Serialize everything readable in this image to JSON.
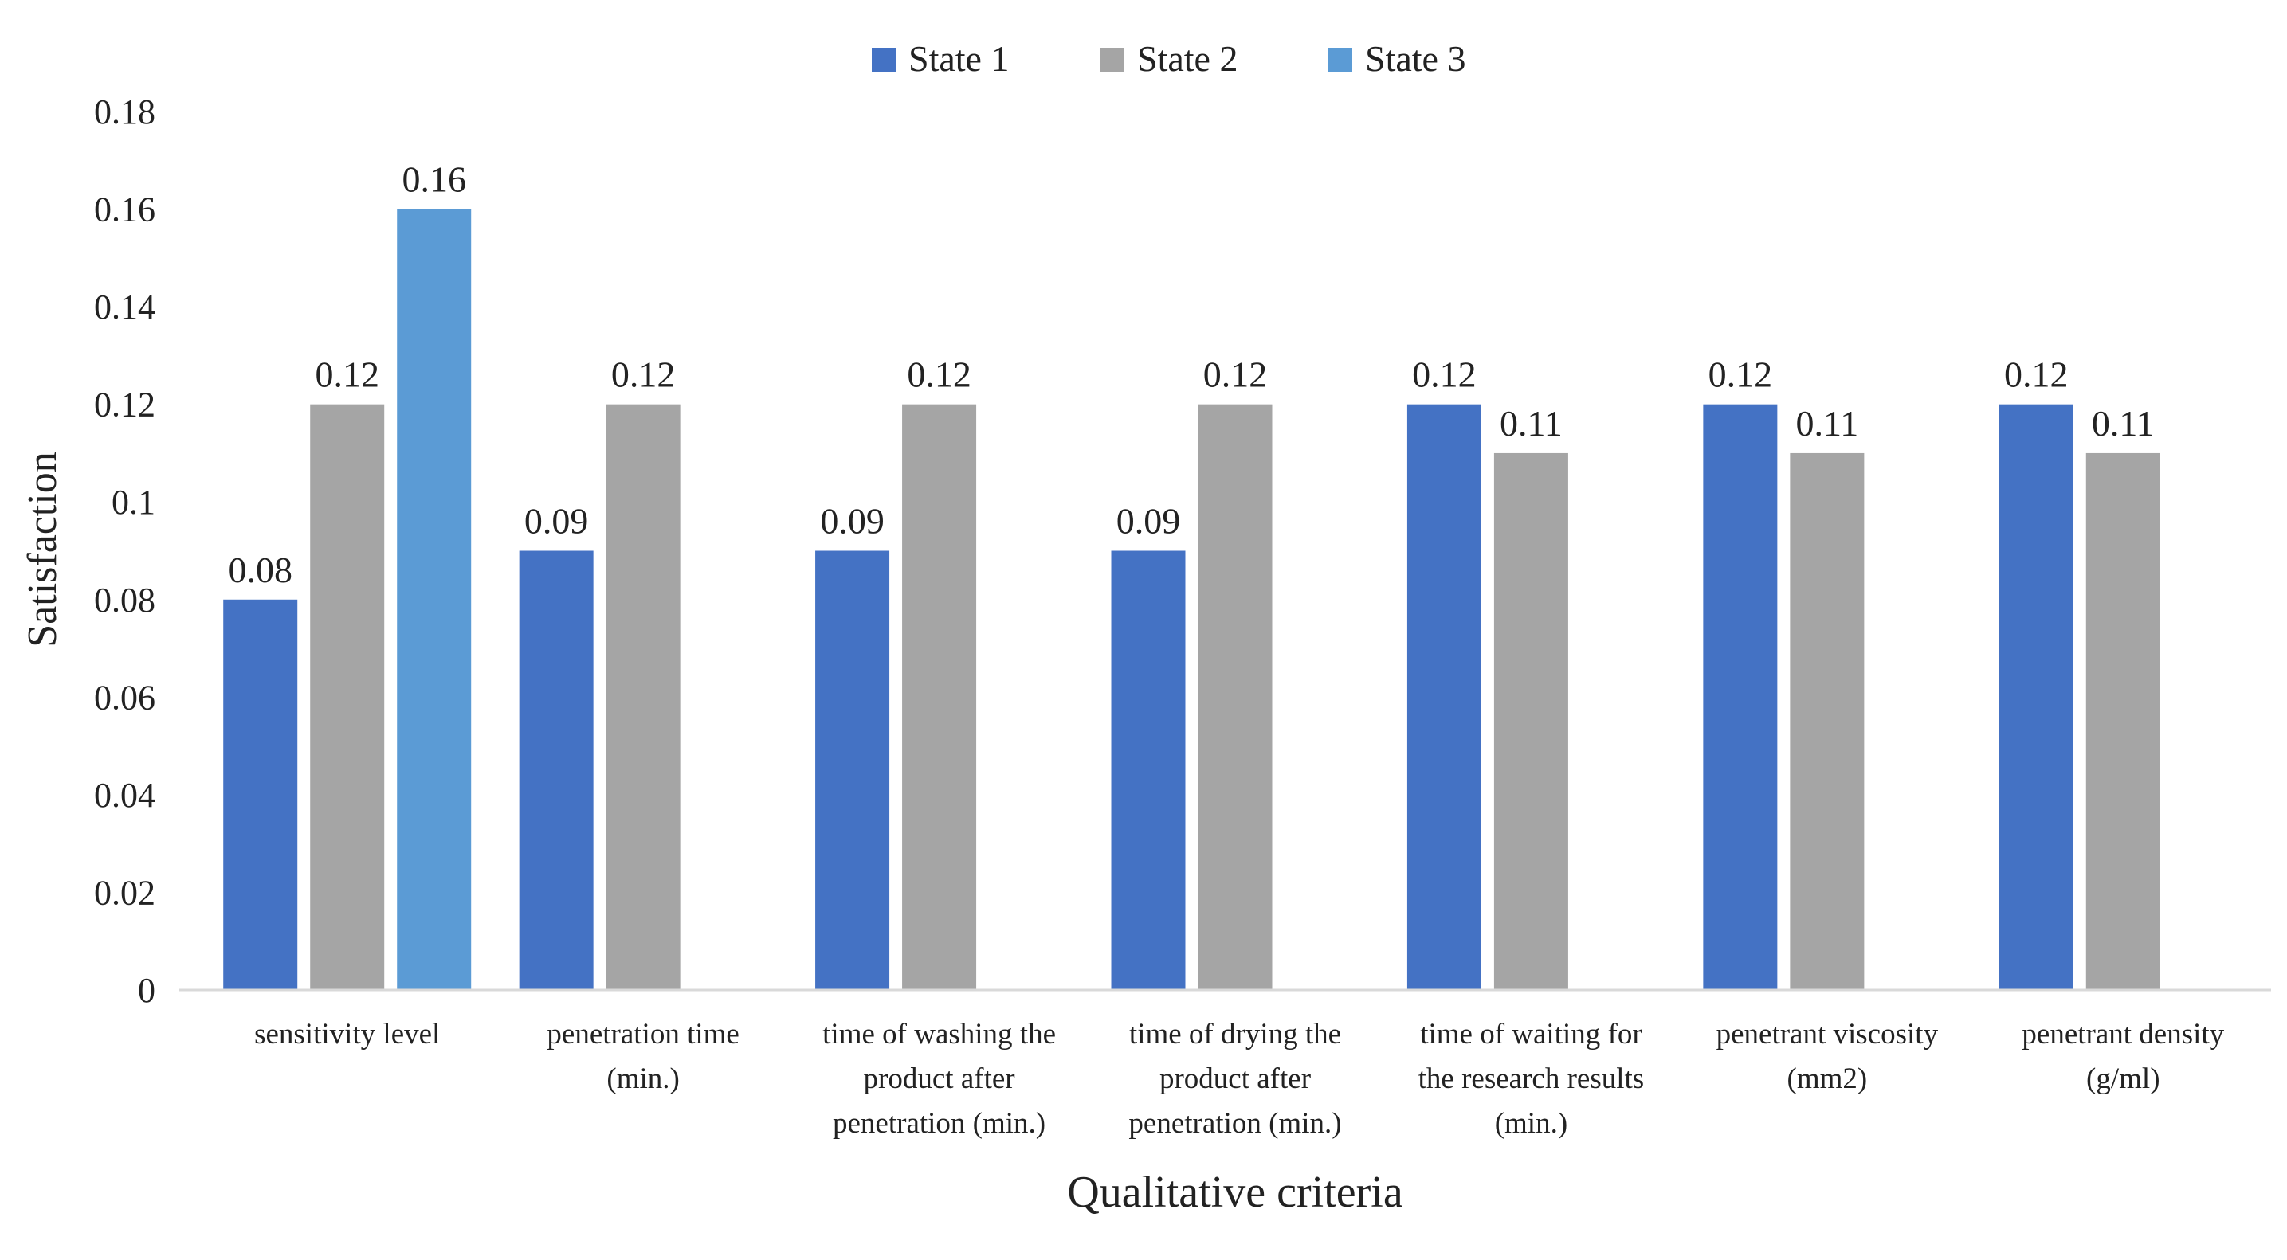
{
  "chart_data": {
    "type": "bar",
    "title": "",
    "xlabel": "Qualitative criteria",
    "ylabel": "Satisfaction",
    "ylim": [
      0,
      0.18
    ],
    "yticks": [
      "0",
      "0.02",
      "0.04",
      "0.06",
      "0.08",
      "0.1",
      "0.12",
      "0.14",
      "0.16",
      "0.18"
    ],
    "grid": false,
    "legend_position": "top-center",
    "categories": [
      [
        "sensitivity level"
      ],
      [
        "penetration time",
        "(min.)"
      ],
      [
        "time of washing the",
        "product after",
        "penetration (min.)"
      ],
      [
        "time of drying the",
        "product after",
        "penetration (min.)"
      ],
      [
        "time of waiting for",
        "the research results",
        "(min.)"
      ],
      [
        "penetrant viscosity",
        "(mm2)"
      ],
      [
        "penetrant density",
        "(g/ml)"
      ]
    ],
    "series": [
      {
        "name": "State 1",
        "color": "#4472C4",
        "values": [
          0.08,
          0.09,
          0.09,
          0.09,
          0.12,
          0.12,
          0.12
        ],
        "labels": [
          "0.08",
          "0.09",
          "0.09",
          "0.09",
          "0.12",
          "0.12",
          "0.12"
        ]
      },
      {
        "name": "State 2",
        "color": "#A5A5A5",
        "values": [
          0.12,
          0.12,
          0.12,
          0.12,
          0.11,
          0.11,
          0.11
        ],
        "labels": [
          "0.12",
          "0.12",
          "0.12",
          "0.12",
          "0.11",
          "0.11",
          "0.11"
        ]
      },
      {
        "name": "State 3",
        "color": "#5B9BD5",
        "values": [
          0.16,
          null,
          null,
          null,
          null,
          null,
          null
        ],
        "labels": [
          "0.16",
          null,
          null,
          null,
          null,
          null,
          null
        ]
      }
    ]
  }
}
